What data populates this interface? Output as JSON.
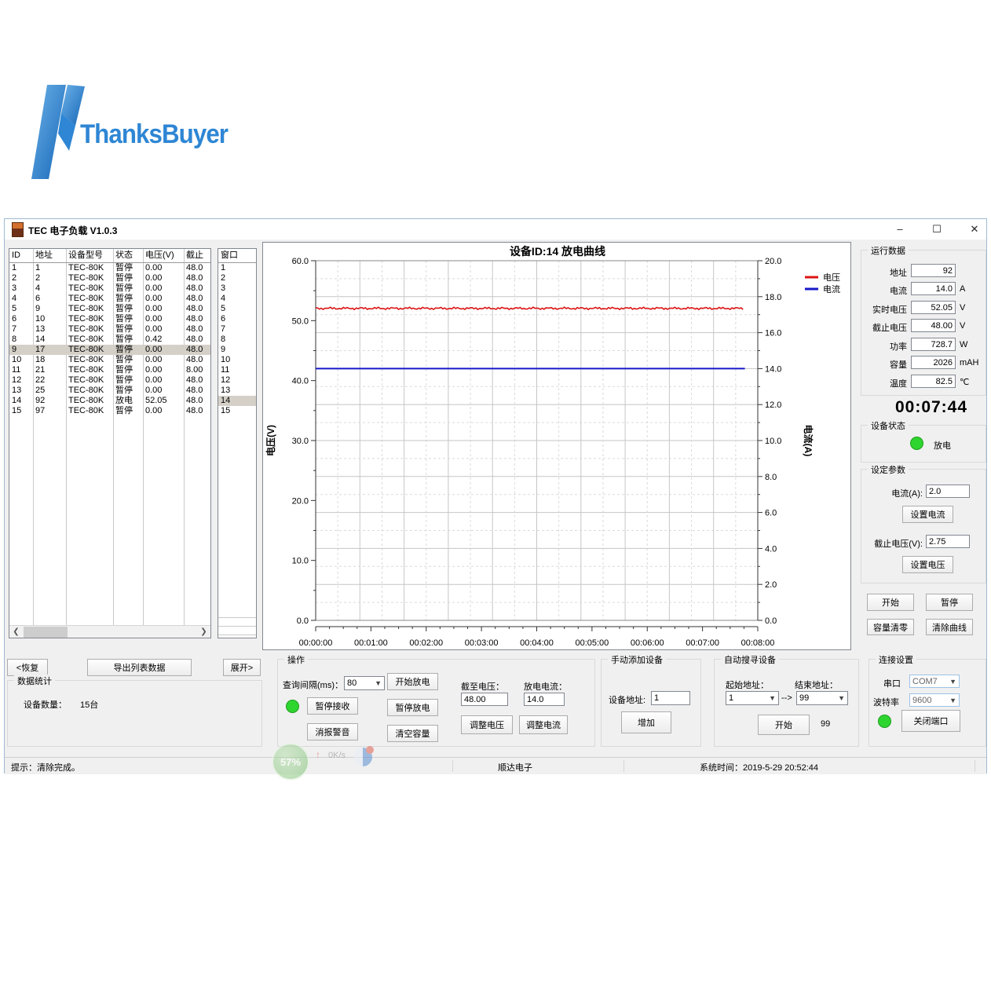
{
  "logo": {
    "text": "ThanksBuyer"
  },
  "window": {
    "title": "TEC 电子负载 V1.0.3",
    "minimize_glyph": "–",
    "maximize_glyph": "☐",
    "close_glyph": "✕"
  },
  "device_table": {
    "headers": [
      "ID",
      "地址",
      "设备型号",
      "状态",
      "电压(V)",
      "截止"
    ],
    "selected_index": 8,
    "rows": [
      [
        "1",
        "1",
        "TEC-80K",
        "暂停",
        "0.00",
        "48.0"
      ],
      [
        "2",
        "2",
        "TEC-80K",
        "暂停",
        "0.00",
        "48.0"
      ],
      [
        "3",
        "4",
        "TEC-80K",
        "暂停",
        "0.00",
        "48.0"
      ],
      [
        "4",
        "6",
        "TEC-80K",
        "暂停",
        "0.00",
        "48.0"
      ],
      [
        "5",
        "9",
        "TEC-80K",
        "暂停",
        "0.00",
        "48.0"
      ],
      [
        "6",
        "10",
        "TEC-80K",
        "暂停",
        "0.00",
        "48.0"
      ],
      [
        "7",
        "13",
        "TEC-80K",
        "暂停",
        "0.00",
        "48.0"
      ],
      [
        "8",
        "14",
        "TEC-80K",
        "暂停",
        "0.42",
        "48.0"
      ],
      [
        "9",
        "17",
        "TEC-80K",
        "暂停",
        "0.00",
        "48.0"
      ],
      [
        "10",
        "18",
        "TEC-80K",
        "暂停",
        "0.00",
        "48.0"
      ],
      [
        "11",
        "21",
        "TEC-80K",
        "暂停",
        "0.00",
        "8.00"
      ],
      [
        "12",
        "22",
        "TEC-80K",
        "暂停",
        "0.00",
        "48.0"
      ],
      [
        "13",
        "25",
        "TEC-80K",
        "暂停",
        "0.00",
        "48.0"
      ],
      [
        "14",
        "92",
        "TEC-80K",
        "放电",
        "52.05",
        "48.0"
      ],
      [
        "15",
        "97",
        "TEC-80K",
        "暂停",
        "0.00",
        "48.0"
      ]
    ]
  },
  "window_table": {
    "header": "窗口",
    "selected_index": 13,
    "rows": [
      "1",
      "2",
      "3",
      "4",
      "5",
      "6",
      "7",
      "8",
      "9",
      "10",
      "11",
      "12",
      "13",
      "14",
      "15"
    ]
  },
  "chart_data": {
    "type": "line",
    "title": "设备ID:14 放电曲线",
    "x_ticks": [
      "00:00:00",
      "00:01:00",
      "00:02:00",
      "00:03:00",
      "00:04:00",
      "00:05:00",
      "00:06:00",
      "00:07:00",
      "00:08:00"
    ],
    "x_range_seconds": [
      0,
      480
    ],
    "y_left": {
      "label": "电压(V)",
      "min": 0,
      "max": 60,
      "major": 10,
      "minor": 5
    },
    "y_right": {
      "label": "电流(A)",
      "min": 0,
      "max": 20,
      "major": 2,
      "minor": 1
    },
    "grid": {
      "divisions": 20,
      "solid_color": "#c6c6c6",
      "dashed_color": "#dadada"
    },
    "legend_position": "top-right",
    "series": [
      {
        "name": "电压",
        "color": "#dc1414",
        "axis": "left",
        "value": 52.05,
        "noise": 0.15,
        "end_seconds": 465
      },
      {
        "name": "电流",
        "color": "#1818c8",
        "axis": "right",
        "value": 14.0,
        "noise": 0,
        "end_seconds": 466
      }
    ]
  },
  "run_data": {
    "title": "运行数据",
    "fields": [
      {
        "label": "地址",
        "value": "92",
        "unit": ""
      },
      {
        "label": "电流",
        "value": "14.0",
        "unit": "A"
      },
      {
        "label": "实时电压",
        "value": "52.05",
        "unit": "V"
      },
      {
        "label": "截止电压",
        "value": "48.00",
        "unit": "V"
      },
      {
        "label": "功率",
        "value": "728.7",
        "unit": "W"
      },
      {
        "label": "容量",
        "value": "2026",
        "unit": "mAH"
      },
      {
        "label": "温度",
        "value": "82.5",
        "unit": "℃"
      }
    ]
  },
  "timer": "00:07:44",
  "device_status": {
    "title": "设备状态",
    "label": "放电"
  },
  "set_params": {
    "title": "设定参数",
    "current_label": "电流(A):",
    "current_value": "2.0",
    "set_current_btn": "设置电流",
    "voltage_label": "截止电压(V):",
    "voltage_value": "2.75",
    "set_voltage_btn": "设置电压"
  },
  "control_buttons": {
    "start": "开始",
    "pause": "暂停",
    "clear_capacity": "容量清零",
    "clear_curve": "清除曲线"
  },
  "bottom": {
    "restore_btn": "<恢复",
    "export_btn": "导出列表数据",
    "expand_btn": "展开>",
    "stats": {
      "title": "数据统计",
      "count_label": "设备数量：",
      "count_value": "15台"
    },
    "operation": {
      "title": "操作",
      "interval_label": "查询间隔(ms)：",
      "interval_value": "80",
      "start_discharge": "开始放电",
      "pause_receive": "暂停接收",
      "pause_discharge": "暂停放电",
      "mute_alarm": "消报警音",
      "clear_capacity": "清空容量",
      "cutoff_label": "截至电压：",
      "cutoff_value": "48.00",
      "current_label": "放电电流：",
      "current_value": "14.0",
      "adjust_voltage": "调整电压",
      "adjust_current": "调整电流"
    },
    "manual_add": {
      "title": "手动添加设备",
      "addr_label": "设备地址:",
      "addr_value": "1",
      "add_btn": "增加"
    },
    "auto_search": {
      "title": "自动搜寻设备",
      "start_label": "起始地址：",
      "start_value": "1",
      "arrow": "-->",
      "end_label": "结束地址：",
      "end_value": "99",
      "start_btn": "开始",
      "progress": "99"
    },
    "connection": {
      "title": "连接设置",
      "port_label": "串口",
      "port_value": "COM7",
      "baud_label": "波特率",
      "baud_value": "9600",
      "close_btn": "关闭端口"
    }
  },
  "status_bar": {
    "hint": "提示：清除完成。",
    "company": "顺达电子",
    "time": "系统时间：2019-5-29 20:52:44"
  },
  "overlay": {
    "percent": "57%",
    "arrow": "↑",
    "speed": "0K/s"
  }
}
